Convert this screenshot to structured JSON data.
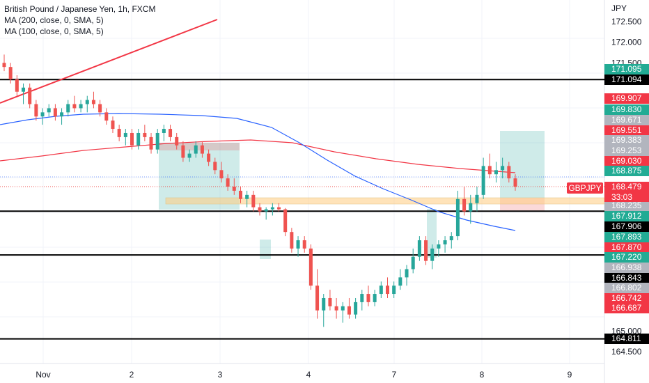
{
  "legend": {
    "symbol": "British Pound / Japanese Yen, 1h, FXCM",
    "ma200": "MA (200, close, 0, SMA, 5)",
    "ma100": "MA (100, close, 0, SMA, 5)"
  },
  "currency": "JPY",
  "symbol_label": "GBPJPY",
  "countdown": "33:03",
  "colors": {
    "up": "#26a69a",
    "down": "#ef5350",
    "ma200": "#f23645",
    "ma100": "#2962ff",
    "trend": "#f23645"
  },
  "chart_data": {
    "type": "candlestick",
    "y_axis": {
      "range": [
        164.3,
        173.2
      ],
      "ticks": [
        "164.500",
        "165.000",
        "171.500",
        "172.000",
        "172.500"
      ]
    },
    "x_axis": {
      "ticks": [
        "Nov",
        "2",
        "3",
        "4",
        "7",
        "8",
        "9"
      ]
    },
    "price_tags": [
      {
        "value": "171.095",
        "kind": "green"
      },
      {
        "value": "171.094",
        "kind": "black"
      },
      {
        "value": "169.907",
        "kind": "red"
      },
      {
        "value": "169.830",
        "kind": "green"
      },
      {
        "value": "169.671",
        "kind": "gray"
      },
      {
        "value": "169.551",
        "kind": "red"
      },
      {
        "value": "169.383",
        "kind": "gray"
      },
      {
        "value": "169.253",
        "kind": "gray"
      },
      {
        "value": "169.030",
        "kind": "red"
      },
      {
        "value": "168.875",
        "kind": "green"
      },
      {
        "value": "168.479",
        "kind": "red"
      },
      {
        "value": "168.235",
        "kind": "gray"
      },
      {
        "value": "167.912",
        "kind": "green"
      },
      {
        "value": "167.906",
        "kind": "black"
      },
      {
        "value": "167.893",
        "kind": "green"
      },
      {
        "value": "167.870",
        "kind": "red"
      },
      {
        "value": "167.220",
        "kind": "green"
      },
      {
        "value": "166.938",
        "kind": "gray"
      },
      {
        "value": "166.843",
        "kind": "black"
      },
      {
        "value": "166.802",
        "kind": "gray"
      },
      {
        "value": "166.742",
        "kind": "red"
      },
      {
        "value": "166.687",
        "kind": "red"
      },
      {
        "value": "164.811",
        "kind": "black"
      }
    ],
    "horizontal_lines": [
      171.094,
      167.906,
      166.843,
      164.811
    ],
    "candles": [
      [
        171.5,
        171.7,
        171.3,
        171.4
      ],
      [
        171.4,
        171.5,
        171.0,
        171.1
      ],
      [
        171.1,
        171.2,
        170.7,
        170.8
      ],
      [
        170.8,
        171.0,
        170.5,
        170.9
      ],
      [
        170.9,
        171.0,
        170.4,
        170.5
      ],
      [
        170.5,
        170.6,
        170.1,
        170.2
      ],
      [
        170.2,
        170.4,
        170.0,
        170.3
      ],
      [
        170.3,
        170.5,
        170.2,
        170.4
      ],
      [
        170.4,
        170.5,
        170.1,
        170.2
      ],
      [
        170.2,
        170.4,
        170.0,
        170.3
      ],
      [
        170.3,
        170.6,
        170.2,
        170.5
      ],
      [
        170.5,
        170.7,
        170.3,
        170.4
      ],
      [
        170.4,
        170.6,
        170.3,
        170.5
      ],
      [
        170.5,
        170.7,
        170.3,
        170.6
      ],
      [
        170.6,
        170.8,
        170.4,
        170.5
      ],
      [
        170.5,
        170.6,
        170.2,
        170.3
      ],
      [
        170.3,
        170.4,
        170.0,
        170.1
      ],
      [
        170.1,
        170.2,
        169.8,
        169.9
      ],
      [
        169.9,
        170.0,
        169.6,
        169.7
      ],
      [
        169.7,
        169.9,
        169.5,
        169.8
      ],
      [
        169.8,
        169.9,
        169.4,
        169.5
      ],
      [
        169.5,
        169.9,
        169.4,
        169.8
      ],
      [
        169.8,
        170.0,
        169.6,
        169.7
      ],
      [
        169.7,
        169.8,
        169.3,
        169.4
      ],
      [
        169.4,
        169.9,
        169.3,
        169.8
      ],
      [
        169.8,
        170.0,
        169.6,
        169.9
      ],
      [
        169.9,
        170.0,
        169.6,
        169.7
      ],
      [
        169.7,
        169.8,
        169.4,
        169.5
      ],
      [
        169.5,
        169.6,
        169.1,
        169.2
      ],
      [
        169.2,
        169.4,
        169.1,
        169.3
      ],
      [
        169.3,
        169.6,
        169.2,
        169.5
      ],
      [
        169.5,
        169.6,
        169.2,
        169.3
      ],
      [
        169.3,
        169.4,
        169.0,
        169.1
      ],
      [
        169.1,
        169.2,
        168.8,
        168.9
      ],
      [
        168.9,
        169.1,
        168.6,
        168.7
      ],
      [
        168.7,
        168.8,
        168.4,
        168.5
      ],
      [
        168.5,
        168.7,
        168.3,
        168.4
      ],
      [
        168.4,
        168.5,
        168.1,
        168.2
      ],
      [
        168.2,
        168.4,
        168.0,
        168.3
      ],
      [
        168.3,
        168.4,
        167.9,
        168.0
      ],
      [
        168.0,
        168.1,
        167.8,
        167.9
      ],
      [
        167.9,
        168.0,
        167.7,
        167.95
      ],
      [
        167.95,
        168.1,
        167.8,
        168.0
      ],
      [
        168.0,
        168.1,
        167.9,
        167.95
      ],
      [
        167.95,
        167.98,
        167.3,
        167.4
      ],
      [
        167.4,
        167.5,
        166.9,
        167.0
      ],
      [
        167.0,
        167.3,
        166.8,
        167.2
      ],
      [
        167.2,
        167.3,
        166.9,
        167.0
      ],
      [
        167.0,
        167.1,
        166.0,
        166.1
      ],
      [
        166.1,
        166.5,
        165.3,
        165.5
      ],
      [
        165.5,
        165.9,
        165.1,
        165.8
      ],
      [
        165.8,
        166.0,
        165.5,
        165.6
      ],
      [
        165.6,
        165.8,
        165.3,
        165.5
      ],
      [
        165.5,
        165.7,
        165.2,
        165.6
      ],
      [
        165.6,
        165.8,
        165.3,
        165.4
      ],
      [
        165.4,
        165.8,
        165.3,
        165.7
      ],
      [
        165.7,
        166.0,
        165.5,
        165.9
      ],
      [
        165.9,
        166.1,
        165.6,
        165.7
      ],
      [
        165.7,
        166.0,
        165.6,
        165.9
      ],
      [
        165.9,
        166.2,
        165.8,
        166.1
      ],
      [
        166.1,
        166.3,
        165.8,
        165.9
      ],
      [
        165.9,
        166.2,
        165.8,
        166.1
      ],
      [
        166.1,
        166.5,
        166.0,
        166.3
      ],
      [
        166.3,
        166.6,
        166.1,
        166.5
      ],
      [
        166.5,
        167.0,
        166.4,
        166.8
      ],
      [
        166.8,
        167.3,
        166.7,
        167.2
      ],
      [
        167.2,
        167.3,
        166.6,
        166.7
      ],
      [
        166.7,
        167.1,
        166.5,
        167.0
      ],
      [
        167.0,
        167.2,
        166.8,
        167.1
      ],
      [
        167.1,
        167.3,
        166.9,
        167.2
      ],
      [
        167.2,
        167.4,
        167.0,
        167.3
      ],
      [
        167.3,
        168.4,
        167.2,
        168.2
      ],
      [
        168.2,
        168.5,
        167.8,
        167.9
      ],
      [
        167.9,
        168.3,
        167.6,
        168.1
      ],
      [
        168.1,
        168.5,
        167.9,
        168.3
      ],
      [
        168.3,
        169.2,
        168.2,
        169.0
      ],
      [
        169.0,
        169.3,
        168.7,
        168.8
      ],
      [
        168.8,
        169.1,
        168.6,
        168.9
      ],
      [
        168.9,
        169.2,
        168.7,
        169.0
      ],
      [
        169.0,
        169.1,
        168.6,
        168.7
      ],
      [
        168.7,
        168.8,
        168.4,
        168.5
      ]
    ]
  }
}
